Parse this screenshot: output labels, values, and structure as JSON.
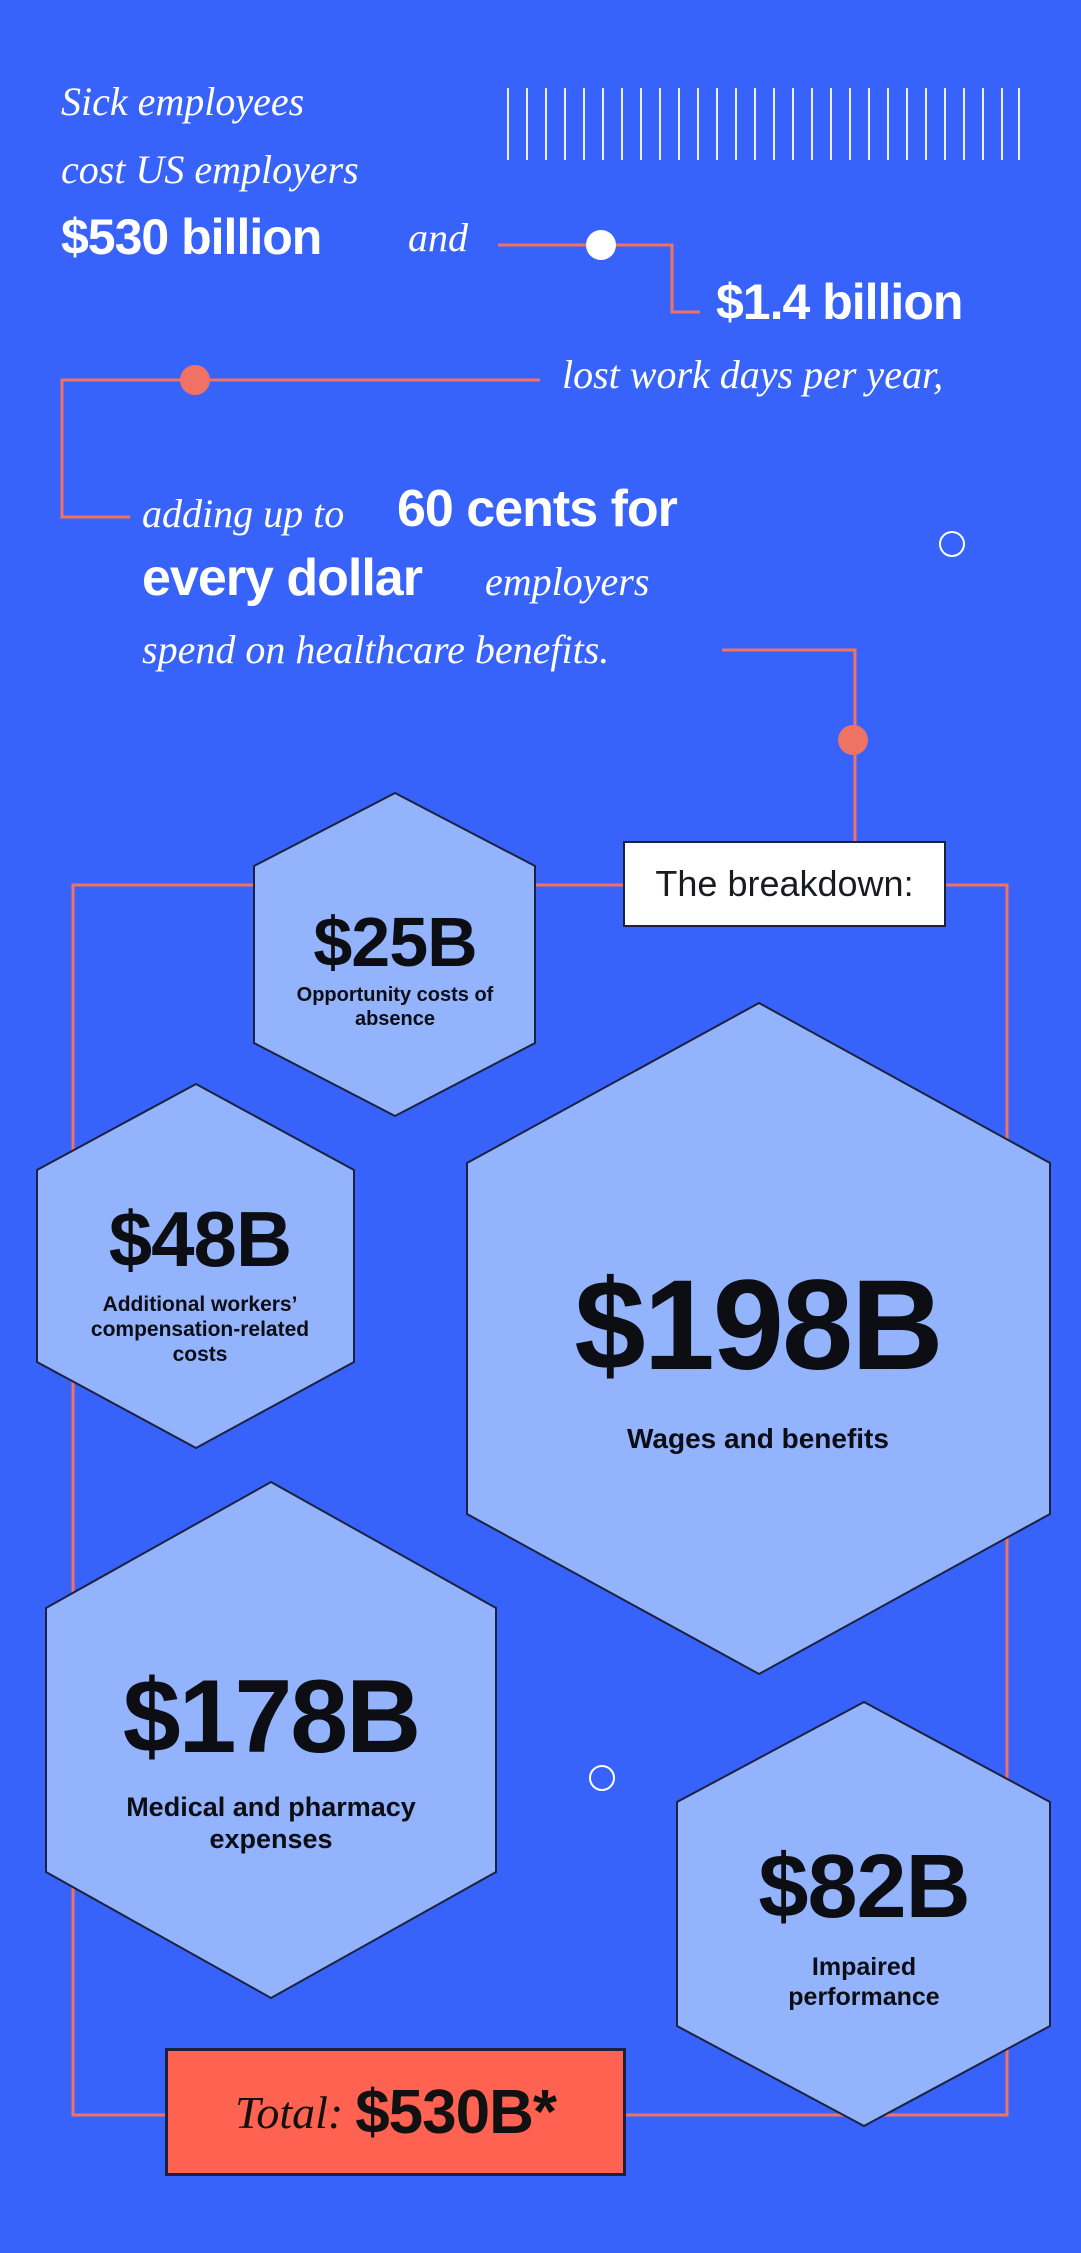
{
  "colors": {
    "background": "#3863FB",
    "hex_fill": "#93B3FC",
    "accent_line": "#F07264",
    "total_box": "#FF6250"
  },
  "intro": {
    "line1": "Sick employees",
    "line2": "cost US employers",
    "amount1": "$530 billion",
    "and": "and",
    "amount2": "$1.4 billion",
    "line4": "lost work days per year,",
    "adding": "adding up to",
    "highlight1": "60 cents for",
    "highlight2": "every dollar",
    "employers": "employers",
    "line7": "spend on healthcare benefits."
  },
  "breakdown_label": "The breakdown:",
  "items": [
    {
      "value": "$25B",
      "label": "Opportunity costs of absence"
    },
    {
      "value": "$48B",
      "label": "Additional workers’ compensation-related costs"
    },
    {
      "value": "$198B",
      "label": "Wages and benefits"
    },
    {
      "value": "$178B",
      "label": "Medical and pharmacy expenses"
    },
    {
      "value": "$82B",
      "label": "Impaired performance"
    }
  ],
  "total": {
    "label": "Total:",
    "value": "$530B*"
  }
}
